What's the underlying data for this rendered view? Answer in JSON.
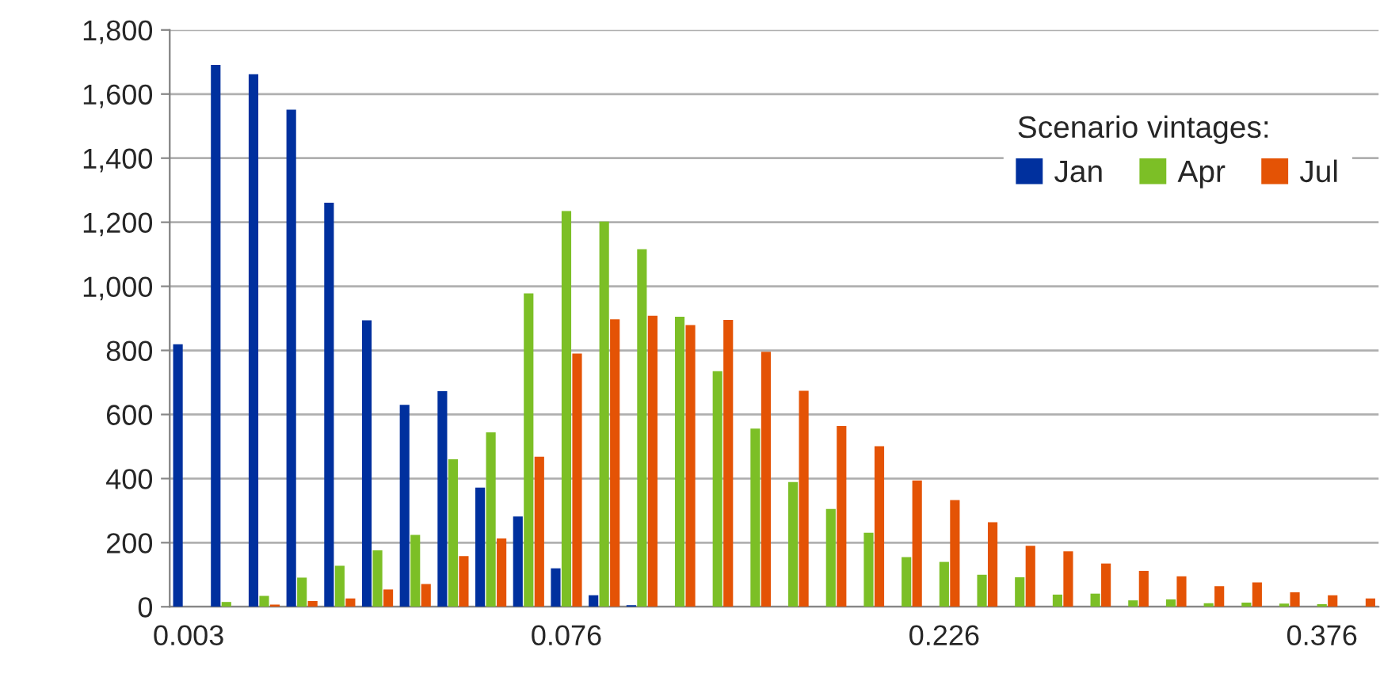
{
  "chart_data": {
    "type": "bar",
    "categories": [
      "0.003",
      null,
      null,
      null,
      null,
      null,
      null,
      null,
      null,
      null,
      "0.076",
      null,
      null,
      null,
      null,
      null,
      null,
      null,
      null,
      null,
      "0.226",
      null,
      null,
      null,
      null,
      null,
      null,
      null,
      null,
      null,
      "0.376",
      null
    ],
    "series": [
      {
        "name": "Jan",
        "color": "#00309e",
        "values": [
          819,
          1691,
          1662,
          1551,
          1261,
          894,
          630,
          673,
          372,
          282,
          120,
          36,
          5,
          0,
          0,
          0,
          0,
          0,
          0,
          0,
          0,
          0,
          0,
          0,
          0,
          0,
          0,
          0,
          0,
          0,
          0,
          0
        ]
      },
      {
        "name": "Apr",
        "color": "#7cbf26",
        "values": [
          0,
          15,
          34,
          91,
          128,
          176,
          224,
          460,
          544,
          978,
          1235,
          1202,
          1116,
          905,
          735,
          556,
          389,
          305,
          231,
          155,
          140,
          100,
          92,
          38,
          41,
          20,
          23,
          11,
          13,
          10,
          8,
          0
        ]
      },
      {
        "name": "Jul",
        "color": "#e45305",
        "values": [
          0,
          0,
          7,
          18,
          26,
          54,
          71,
          158,
          213,
          468,
          790,
          897,
          908,
          879,
          895,
          796,
          674,
          564,
          501,
          394,
          333,
          264,
          190,
          173,
          135,
          112,
          95,
          64,
          76,
          45,
          36,
          26
        ]
      }
    ],
    "legend_title": "Scenario vintages:",
    "legend": "top right",
    "grid": "y",
    "ylim": [
      0,
      1800
    ],
    "yticks": [
      {
        "value": 0,
        "label": "0"
      },
      {
        "value": 200,
        "label": "200"
      },
      {
        "value": 400,
        "label": "400"
      },
      {
        "value": 600,
        "label": "600"
      },
      {
        "value": 800,
        "label": "800"
      },
      {
        "value": 1000,
        "label": "1,000"
      },
      {
        "value": 1200,
        "label": "1,200"
      },
      {
        "value": 1400,
        "label": "1,400"
      },
      {
        "value": 1600,
        "label": "1,600"
      },
      {
        "value": 1800,
        "label": "1,800"
      }
    ]
  }
}
